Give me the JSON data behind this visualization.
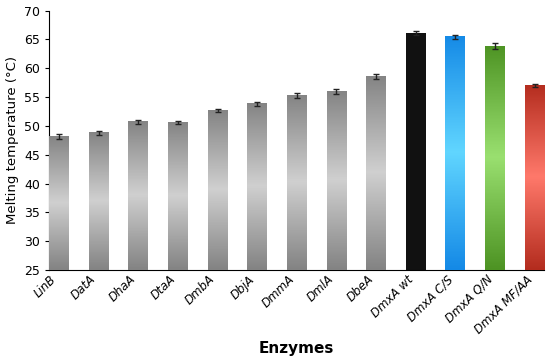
{
  "categories": [
    "LinB",
    "DatA",
    "DhaA",
    "DtaA",
    "DmbA",
    "DbjA",
    "DmmA",
    "DmlA",
    "DbeA",
    "DmxA wt",
    "DmxA C/S",
    "DmxA Q/N",
    "DmxA MF/AA"
  ],
  "values": [
    48.2,
    48.8,
    50.7,
    50.6,
    52.7,
    53.8,
    55.3,
    56.0,
    58.6,
    66.1,
    65.4,
    63.8,
    57.0
  ],
  "errors": [
    0.4,
    0.4,
    0.4,
    0.3,
    0.3,
    0.4,
    0.4,
    0.4,
    0.4,
    0.3,
    0.3,
    0.5,
    0.3
  ],
  "bar_colors_base": [
    "#909090",
    "#909090",
    "#909090",
    "#909090",
    "#909090",
    "#909090",
    "#909090",
    "#909090",
    "#909090",
    "#111111",
    "#2196F3",
    "#5aA030",
    "#C0392B"
  ],
  "ylabel": "Melting temperature (°C)",
  "xlabel": "Enzymes",
  "ylim": [
    25,
    70
  ],
  "yticks": [
    25,
    30,
    35,
    40,
    45,
    50,
    55,
    60,
    65,
    70
  ],
  "background_color": "#ffffff",
  "bar_width": 0.5,
  "error_color": "#222222",
  "figsize": [
    5.5,
    3.62
  ],
  "dpi": 100
}
